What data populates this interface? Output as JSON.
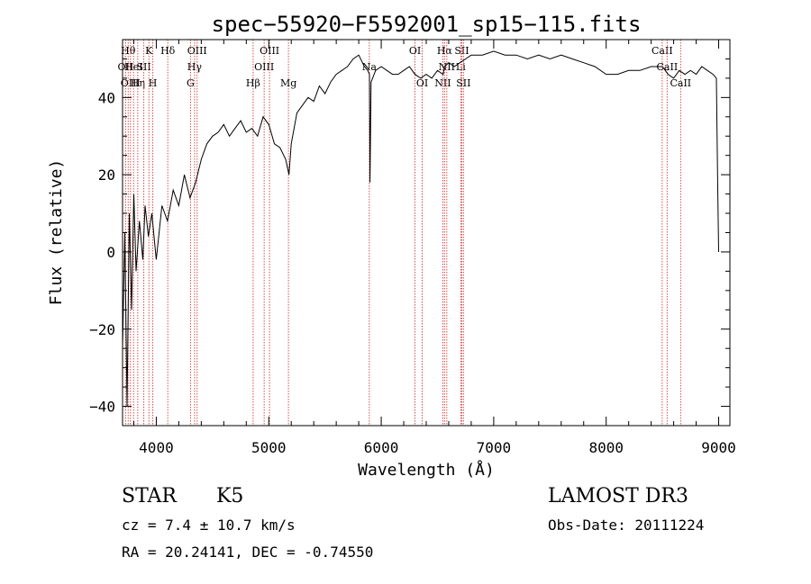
{
  "chart_data": {
    "type": "line",
    "title": "spec−55920−F5592001_sp15−115.fits",
    "xlabel": "Wavelength (Å)",
    "ylabel": "Flux (relative)",
    "xlim": [
      3700,
      9100
    ],
    "ylim": [
      -45,
      55
    ],
    "x_ticks": [
      4000,
      5000,
      6000,
      7000,
      8000,
      9000
    ],
    "y_ticks": [
      -40,
      -20,
      0,
      20,
      40
    ],
    "x_tick_labels": [
      "4000",
      "5000",
      "6000",
      "7000",
      "8000",
      "9000"
    ],
    "y_tick_labels": [
      "−40",
      "−20",
      "0",
      "20",
      "40"
    ],
    "series": [
      {
        "name": "flux",
        "x": [
          3700,
          3720,
          3740,
          3760,
          3780,
          3800,
          3820,
          3850,
          3880,
          3900,
          3930,
          3960,
          4000,
          4050,
          4100,
          4150,
          4200,
          4250,
          4300,
          4350,
          4400,
          4450,
          4500,
          4550,
          4600,
          4650,
          4700,
          4750,
          4800,
          4850,
          4900,
          4950,
          5000,
          5050,
          5100,
          5150,
          5180,
          5200,
          5250,
          5300,
          5350,
          5400,
          5450,
          5500,
          5550,
          5600,
          5650,
          5700,
          5750,
          5800,
          5850,
          5880,
          5895,
          5900,
          5910,
          5950,
          6000,
          6050,
          6100,
          6150,
          6200,
          6250,
          6300,
          6350,
          6400,
          6450,
          6500,
          6550,
          6563,
          6600,
          6650,
          6700,
          6750,
          6800,
          6900,
          7000,
          7100,
          7200,
          7300,
          7400,
          7500,
          7600,
          7700,
          7800,
          7900,
          8000,
          8100,
          8200,
          8300,
          8400,
          8500,
          8550,
          8600,
          8650,
          8700,
          8750,
          8800,
          8850,
          8900,
          8950,
          8980,
          8990,
          9000
        ],
        "y": [
          -25,
          5,
          -40,
          10,
          -15,
          15,
          -5,
          8,
          -2,
          12,
          4,
          10,
          -2,
          12,
          8,
          16,
          12,
          20,
          14,
          18,
          24,
          28,
          30,
          31,
          33,
          30,
          32,
          34,
          31,
          32,
          30,
          35,
          33,
          28,
          27,
          24,
          20,
          28,
          36,
          38,
          40,
          39,
          43,
          41,
          44,
          46,
          47,
          48,
          50,
          51,
          48,
          47,
          46,
          18,
          44,
          47,
          48,
          47,
          46,
          46,
          47,
          48,
          46,
          45,
          46,
          45,
          47,
          46,
          48,
          49,
          48,
          49,
          50,
          51,
          51,
          52,
          51,
          51,
          50,
          51,
          50,
          51,
          50,
          49,
          48,
          46,
          46,
          47,
          47,
          48,
          48,
          46,
          45,
          47,
          46,
          47,
          46,
          48,
          47,
          46,
          45,
          20,
          0
        ]
      }
    ],
    "line_markers": [
      {
        "x": 3727,
        "label": "OII",
        "row": 1
      },
      {
        "x": 3750,
        "label": "Hθ",
        "row": 0
      },
      {
        "x": 3770,
        "label": "OIII",
        "row": 2
      },
      {
        "x": 3798,
        "label": "HeI",
        "row": 1
      },
      {
        "x": 3835,
        "label": "Hη",
        "row": 2
      },
      {
        "x": 3889,
        "label": "SII",
        "row": 1
      },
      {
        "x": 3934,
        "label": "K",
        "row": 0
      },
      {
        "x": 3969,
        "label": "H",
        "row": 2
      },
      {
        "x": 4102,
        "label": "Hδ",
        "row": 0
      },
      {
        "x": 4304,
        "label": "G",
        "row": 2
      },
      {
        "x": 4340,
        "label": "Hγ",
        "row": 1
      },
      {
        "x": 4363,
        "label": "OIII",
        "row": 0
      },
      {
        "x": 4861,
        "label": "Hβ",
        "row": 2
      },
      {
        "x": 4959,
        "label": "OIII",
        "row": 1
      },
      {
        "x": 5007,
        "label": "OIII",
        "row": 0
      },
      {
        "x": 5175,
        "label": "Mg",
        "row": 2
      },
      {
        "x": 5894,
        "label": "Na",
        "row": 1
      },
      {
        "x": 6300,
        "label": "OI",
        "row": 0
      },
      {
        "x": 6364,
        "label": "OI",
        "row": 2
      },
      {
        "x": 6548,
        "label": "NII",
        "row": 2
      },
      {
        "x": 6563,
        "label": "Hα",
        "row": 0
      },
      {
        "x": 6583,
        "label": "NII",
        "row": 1
      },
      {
        "x": 6707,
        "label": "Li",
        "row": 1
      },
      {
        "x": 6716,
        "label": "SII",
        "row": 0
      },
      {
        "x": 6731,
        "label": "SII",
        "row": 2
      },
      {
        "x": 8498,
        "label": "CaII",
        "row": 0
      },
      {
        "x": 8542,
        "label": "CaII",
        "row": 1
      },
      {
        "x": 8662,
        "label": "CaII",
        "row": 2
      }
    ]
  },
  "info": {
    "object_class": "STAR",
    "subclass": "K5",
    "survey": "LAMOST DR3",
    "redshift": "cz = 7.4 ± 10.7 km/s",
    "obs_date": "Obs-Date: 20111224",
    "coords": "RA =  20.24141, DEC =  -0.74550"
  }
}
